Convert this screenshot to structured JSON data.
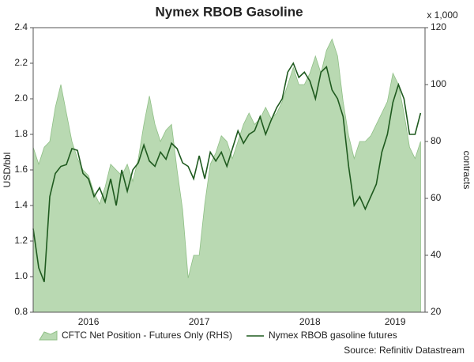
{
  "chart_data": {
    "type": "line",
    "title": "Nymex RBOB Gasoline",
    "y_label": "USD/bbl",
    "y2_label": "contracts",
    "y2_unit": "x 1,000",
    "source": "Source: Refinitiv Datastream",
    "x": [
      2016,
      2016.05,
      2016.1,
      2016.15,
      2016.2,
      2016.25,
      2016.3,
      2016.35,
      2016.4,
      2016.45,
      2016.5,
      2016.55,
      2016.6,
      2016.65,
      2016.7,
      2016.75,
      2016.8,
      2016.85,
      2016.9,
      2016.95,
      2017,
      2017.05,
      2017.1,
      2017.15,
      2017.2,
      2017.25,
      2017.3,
      2017.35,
      2017.4,
      2017.45,
      2017.5,
      2017.55,
      2017.6,
      2017.65,
      2017.7,
      2017.75,
      2017.8,
      2017.85,
      2017.9,
      2017.95,
      2018,
      2018.05,
      2018.1,
      2018.15,
      2018.2,
      2018.25,
      2018.3,
      2018.35,
      2018.4,
      2018.45,
      2018.5,
      2018.55,
      2018.6,
      2018.65,
      2018.7,
      2018.75,
      2018.8,
      2018.85,
      2018.9,
      2018.95,
      2019,
      2019.05,
      2019.1,
      2019.15,
      2019.2,
      2019.25,
      2019.3,
      2019.35,
      2019.4,
      2019.45,
      2019.5
    ],
    "xlim": [
      2016,
      2019.54
    ],
    "xticks": [
      {
        "value": 2016.5,
        "label": "2016"
      },
      {
        "value": 2017.5,
        "label": "2017"
      },
      {
        "value": 2018.5,
        "label": "2018"
      },
      {
        "value": 2019.27,
        "label": "2019"
      }
    ],
    "ylim": [
      0.8,
      2.4
    ],
    "yticks": [
      0.8,
      {
        "value": 1,
        "label": "1.0"
      },
      1.2,
      1.4,
      1.6,
      1.8,
      {
        "value": 2,
        "label": "2.0"
      },
      2.2,
      2.4
    ],
    "y2lim": [
      20,
      120
    ],
    "y2ticks": [
      20,
      40,
      60,
      80,
      100,
      120
    ],
    "grid": false,
    "series": [
      {
        "name": "CFTC Net Position - Futures Only (RHS)",
        "type": "area",
        "axis": "y2",
        "color": "#b9d9b2",
        "values": [
          78,
          72,
          78,
          80,
          92,
          100,
          90,
          80,
          74,
          70,
          68,
          62,
          58,
          64,
          72,
          70,
          68,
          72,
          66,
          74,
          86,
          96,
          86,
          80,
          84,
          86,
          70,
          56,
          32,
          40,
          40,
          58,
          72,
          76,
          82,
          80,
          74,
          80,
          86,
          90,
          86,
          88,
          92,
          88,
          90,
          94,
          100,
          106,
          100,
          100,
          104,
          110,
          104,
          112,
          116,
          110,
          94,
          82,
          74,
          80,
          80,
          82,
          86,
          90,
          94,
          104,
          100,
          90,
          78,
          74,
          80
        ]
      },
      {
        "name": "Nymex RBOB gasoline futures",
        "type": "line",
        "color": "#1f5a1f",
        "values": [
          1.27,
          1.05,
          0.97,
          1.45,
          1.58,
          1.62,
          1.63,
          1.72,
          1.71,
          1.58,
          1.55,
          1.45,
          1.5,
          1.42,
          1.55,
          1.4,
          1.6,
          1.48,
          1.6,
          1.64,
          1.74,
          1.65,
          1.62,
          1.7,
          1.66,
          1.75,
          1.72,
          1.64,
          1.62,
          1.55,
          1.68,
          1.55,
          1.7,
          1.65,
          1.7,
          1.62,
          1.72,
          1.82,
          1.75,
          1.8,
          1.82,
          1.9,
          1.8,
          1.88,
          1.95,
          2,
          2.15,
          2.2,
          2.12,
          2.15,
          2.1,
          2,
          2.15,
          2.18,
          2.05,
          2,
          1.9,
          1.62,
          1.4,
          1.45,
          1.38,
          1.45,
          1.52,
          1.7,
          1.8,
          1.98,
          2.08,
          2,
          1.8,
          1.8,
          1.92
        ]
      }
    ]
  }
}
